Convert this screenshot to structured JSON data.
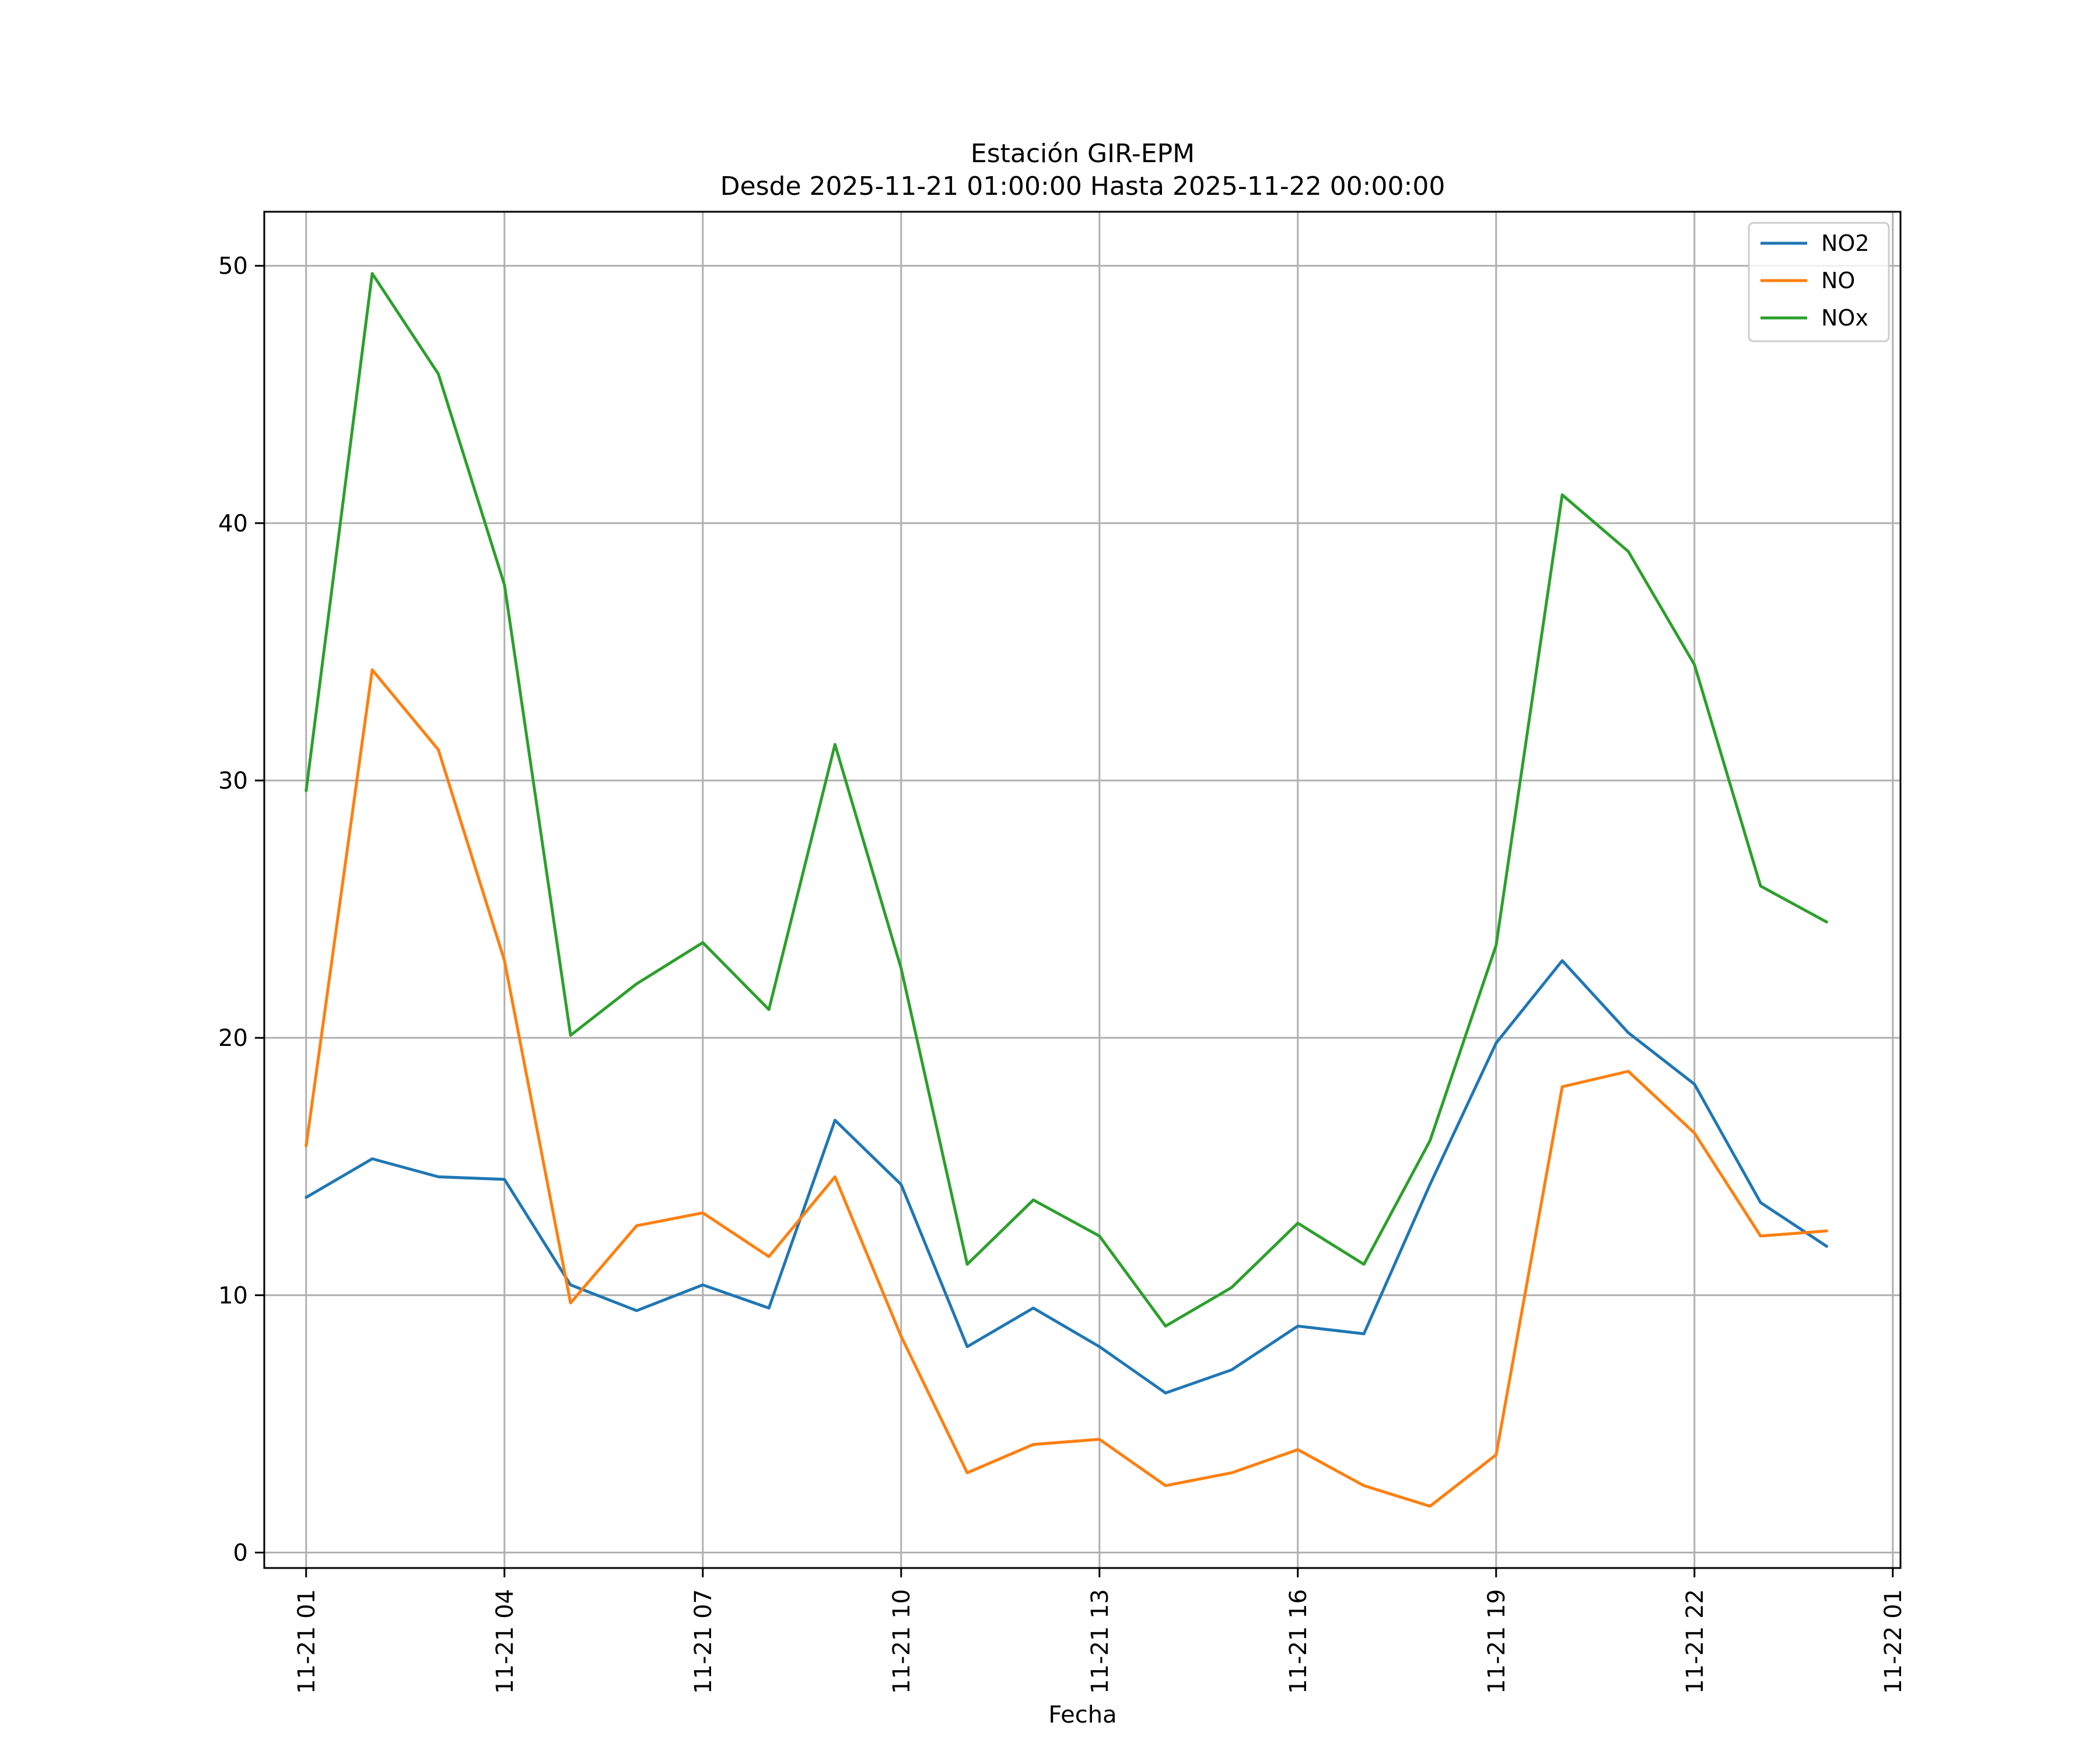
{
  "chart_data": {
    "type": "line",
    "title": "Estación GIR-EPM",
    "subtitle": "Desde 2025-11-21 01:00:00 Hasta 2025-11-22 00:00:00",
    "xlabel": "Fecha",
    "ylabel": "",
    "x": [
      "11-21 01",
      "11-21 02",
      "11-21 03",
      "11-21 04",
      "11-21 05",
      "11-21 06",
      "11-21 07",
      "11-21 08",
      "11-21 09",
      "11-21 10",
      "11-21 11",
      "11-21 12",
      "11-21 13",
      "11-21 14",
      "11-21 15",
      "11-21 16",
      "11-21 17",
      "11-21 18",
      "11-21 19",
      "11-21 20",
      "11-21 21",
      "11-21 22",
      "11-21 23",
      "11-22 00"
    ],
    "x_ticks": [
      "11-21 01",
      "11-21 04",
      "11-21 07",
      "11-21 10",
      "11-21 13",
      "11-21 16",
      "11-21 19",
      "11-21 22",
      "11-22 01"
    ],
    "xlim": [
      "11-21 00:22",
      "11-22 01:07"
    ],
    "y_ticks": [
      0,
      10,
      20,
      30,
      40,
      50
    ],
    "ylim": [
      -0.6,
      52.1
    ],
    "grid": true,
    "legend_position": "upper right",
    "series": [
      {
        "name": "NO2",
        "color": "#1f77b4",
        "values": [
          13.8,
          15.3,
          14.6,
          14.5,
          10.4,
          9.4,
          10.4,
          9.5,
          16.8,
          14.3,
          8.0,
          9.5,
          8.0,
          6.2,
          7.1,
          8.8,
          8.5,
          14.3,
          19.8,
          23.0,
          20.2,
          18.2,
          13.6,
          11.9
        ]
      },
      {
        "name": "NO",
        "color": "#ff7f0e",
        "values": [
          15.8,
          34.3,
          31.2,
          23.0,
          9.7,
          12.7,
          13.2,
          11.5,
          14.6,
          8.4,
          3.1,
          4.2,
          4.4,
          2.6,
          3.1,
          4.0,
          2.6,
          1.8,
          3.8,
          18.1,
          18.7,
          16.3,
          12.3,
          12.5
        ]
      },
      {
        "name": "NOx",
        "color": "#2ca02c",
        "values": [
          29.6,
          49.7,
          45.8,
          37.6,
          20.1,
          22.1,
          23.7,
          21.1,
          31.4,
          22.7,
          11.2,
          13.7,
          12.3,
          8.8,
          10.3,
          12.8,
          11.2,
          16.0,
          23.6,
          41.1,
          38.9,
          34.5,
          25.9,
          24.5
        ]
      }
    ]
  }
}
